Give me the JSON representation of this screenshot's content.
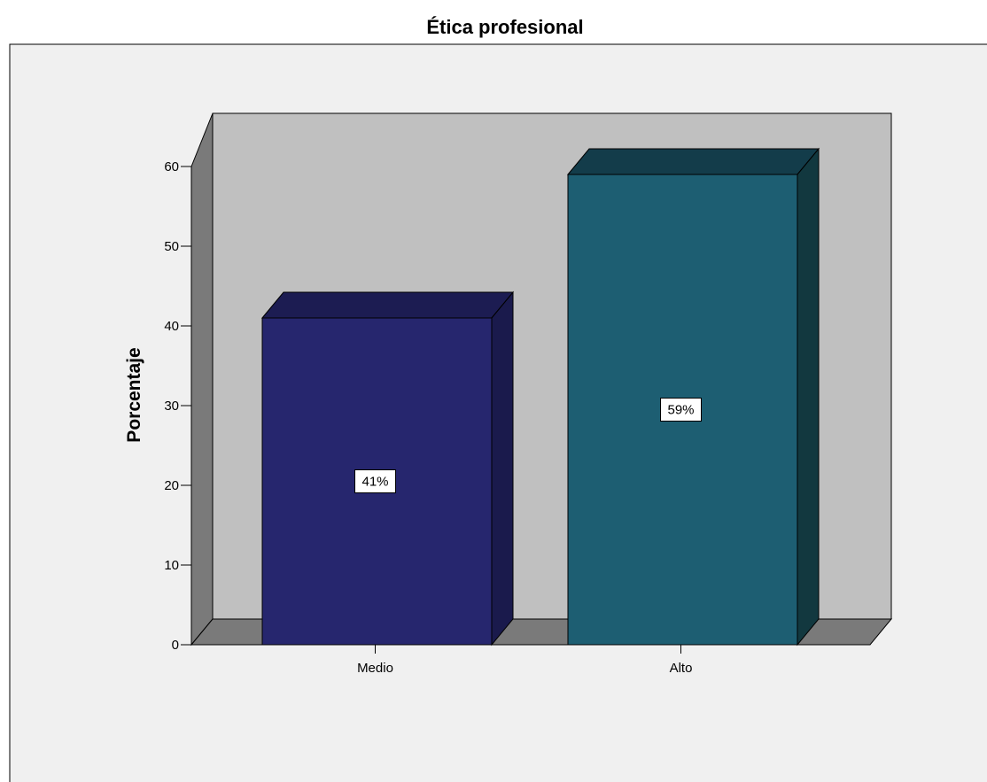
{
  "chart_data": {
    "type": "bar",
    "title": "Ética profesional",
    "ylabel": "Porcentaje",
    "xlabel": "",
    "categories": [
      "Medio",
      "Alto"
    ],
    "values": [
      41,
      59
    ],
    "data_labels": [
      "41%",
      "59%"
    ],
    "ylim": [
      0,
      60
    ],
    "yticks": [
      0,
      10,
      20,
      30,
      40,
      50,
      60
    ],
    "bar_colors": [
      "#26266e",
      "#1d5e72"
    ],
    "bar_top_colors": [
      "#1c1c52",
      "#133c4a"
    ],
    "bar_side_colors": [
      "#1a1a4c",
      "#12383f"
    ],
    "wall_color": "#c0c0c0",
    "floor_color": "#7a7a7a",
    "background_color": "#f0f0f0",
    "legend": "none",
    "grid": false
  }
}
